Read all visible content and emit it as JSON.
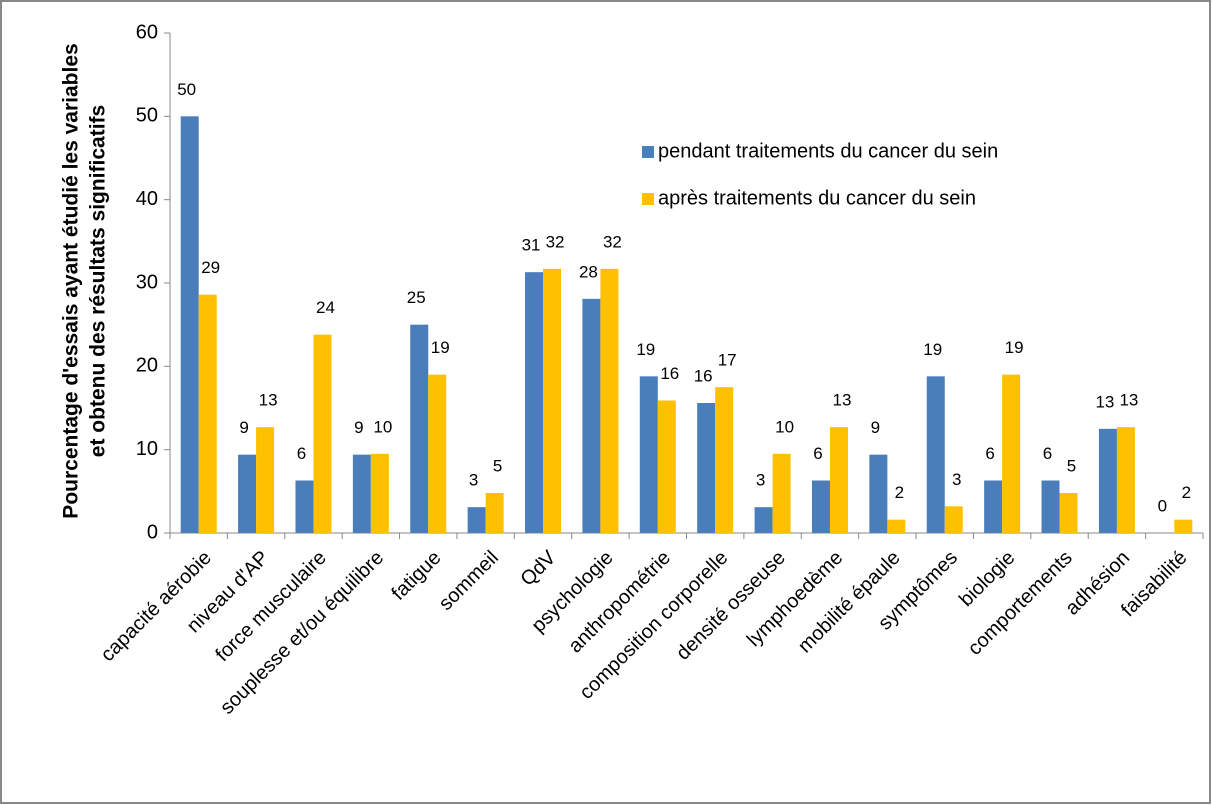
{
  "chart_data": {
    "type": "bar",
    "ylabel": [
      "Pourcentage d'essais ayant étudié les variables",
      "et obtenu des résultats significatifs"
    ],
    "categories": [
      "capacité aérobie",
      "niveau d'AP",
      "force musculaire",
      "souplesse et/ou équilibre",
      "fatigue",
      "sommeil",
      "QdV",
      "psychologie",
      "anthropométrie",
      "composition corporelle",
      "densité osseuse",
      "lymphoedème",
      "mobilité épaule",
      "symptômes",
      "biologie",
      "comportements",
      "adhésion",
      "faisabilité"
    ],
    "series": [
      {
        "name": "pendant traitements du cancer du sein",
        "color": "#4a7ebb",
        "values": [
          50,
          9.4,
          6.3,
          9.4,
          25,
          3.1,
          31.3,
          28.1,
          18.8,
          15.6,
          3.1,
          6.3,
          9.4,
          18.8,
          6.3,
          6.3,
          12.5,
          0
        ],
        "value_labels": [
          "50",
          "9",
          "6",
          "9",
          "25",
          "3",
          "31",
          "28",
          "19",
          "16",
          "3",
          "6",
          "9",
          "19",
          "6",
          "6",
          "13",
          "0"
        ]
      },
      {
        "name": "après traitements du cancer du sein",
        "color": "#ffc000",
        "values": [
          28.6,
          12.7,
          23.8,
          9.5,
          19.0,
          4.8,
          31.7,
          31.7,
          15.9,
          17.5,
          9.5,
          12.7,
          1.6,
          3.2,
          19.0,
          4.8,
          12.7,
          1.6
        ],
        "value_labels": [
          "29",
          "13",
          "24",
          "10",
          "19",
          "5",
          "32",
          "32",
          "16",
          "17",
          "10",
          "13",
          "2",
          "3",
          "19",
          "5",
          "13",
          "2"
        ]
      }
    ],
    "ylim": [
      0,
      60
    ],
    "yticks": [
      0,
      10,
      20,
      30,
      40,
      50,
      60
    ],
    "grid": false,
    "legend": "upper-center"
  }
}
